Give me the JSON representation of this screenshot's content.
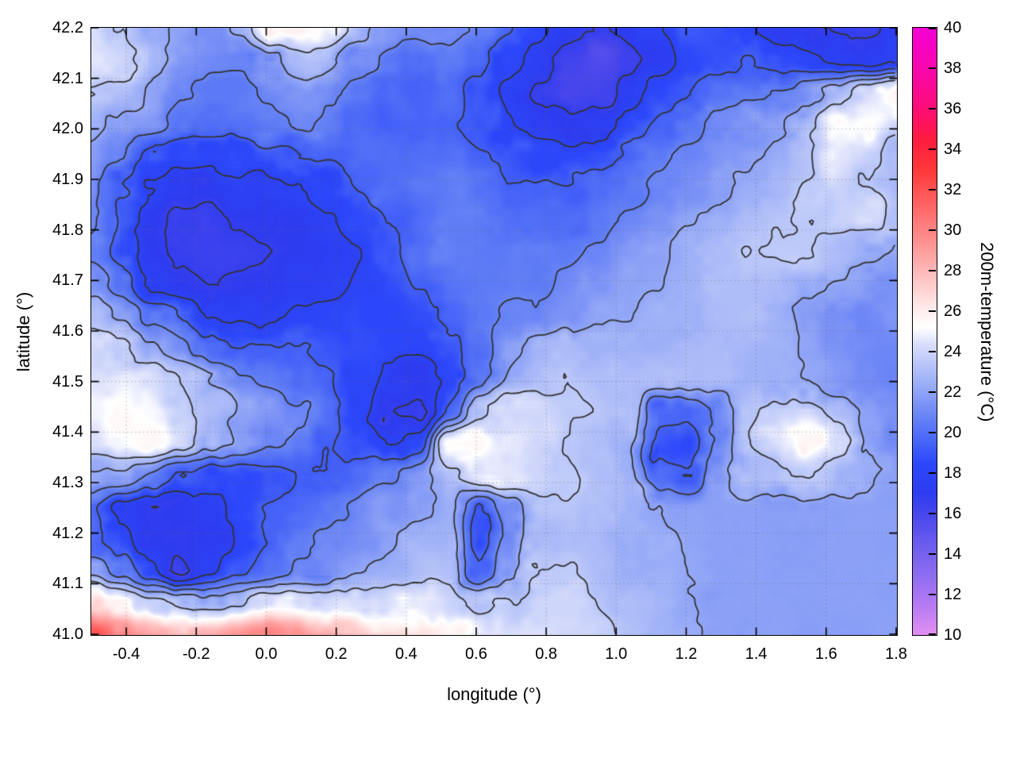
{
  "figure": {
    "xlabel": "longitude (°)",
    "ylabel": "latitude (°)",
    "cblabel": "200m-temperature (°C)",
    "background": "#ffffff",
    "text_color": "#000000"
  },
  "chart_data": {
    "type": "heatmap",
    "title": "",
    "xlabel": "longitude (°)",
    "ylabel": "latitude (°)",
    "x_range": [
      -0.5,
      1.8
    ],
    "y_range": [
      41.0,
      42.2
    ],
    "x_ticks": [
      "-0.4",
      "-0.2",
      "0.0",
      "0.2",
      "0.4",
      "0.6",
      "0.8",
      "1.0",
      "1.2",
      "1.4",
      "1.6",
      "1.8"
    ],
    "y_ticks": [
      "41.0",
      "41.1",
      "41.2",
      "41.3",
      "41.4",
      "41.5",
      "41.6",
      "41.7",
      "41.8",
      "41.9",
      "42.0",
      "42.1",
      "42.2"
    ],
    "grid_lines": {
      "style": "dotted",
      "color": "rgba(110,110,110,0.5)"
    },
    "contour_levels": [
      23.5,
      22.15,
      20.8,
      19.4,
      18.0,
      16.8
    ],
    "contour_color": "#333333",
    "colorbar": {
      "label": "200m-temperature (°C)",
      "range": [
        10,
        40
      ],
      "ticks": [
        "10",
        "12",
        "14",
        "16",
        "18",
        "20",
        "22",
        "24",
        "26",
        "28",
        "30",
        "32",
        "34",
        "36",
        "38",
        "40"
      ],
      "stops": [
        [
          10,
          "#e08ff0"
        ],
        [
          11.5,
          "#b57af2"
        ],
        [
          13,
          "#8c6cf0"
        ],
        [
          14.5,
          "#6b5cee"
        ],
        [
          16,
          "#4746ec"
        ],
        [
          17,
          "#2e3cf0"
        ],
        [
          18.5,
          "#2c47fa"
        ],
        [
          19.5,
          "#4663f8"
        ],
        [
          20.5,
          "#5f7cf6"
        ],
        [
          21.5,
          "#7e95f6"
        ],
        [
          22.5,
          "#9fb1f7"
        ],
        [
          23.5,
          "#bcc8f9"
        ],
        [
          24.4,
          "#dadffb"
        ],
        [
          25.2,
          "#ffffff"
        ],
        [
          26.2,
          "#ffe9e9"
        ],
        [
          27.5,
          "#ffc6c6"
        ],
        [
          29,
          "#ff9c9c"
        ],
        [
          31,
          "#ff6a6a"
        ],
        [
          33,
          "#ff3838"
        ],
        [
          34.5,
          "#ff1a40"
        ],
        [
          36,
          "#fd0d76"
        ],
        [
          38,
          "#f807ae"
        ],
        [
          40,
          "#f400d6"
        ]
      ]
    },
    "grid": {
      "nx": 28,
      "ny": 20,
      "order": "rows north (42.2) to south (41.0), columns west (-0.5) to east (1.8)",
      "units": "degC",
      "values": [
        [
          24.5,
          23.5,
          22.5,
          22.0,
          21.5,
          22.5,
          25.5,
          26.0,
          25.0,
          22.5,
          21.5,
          21.0,
          21.0,
          20.5,
          19.5,
          18.5,
          17.5,
          16.8,
          17.0,
          18.0,
          19.0,
          18.8,
          18.2,
          17.5,
          17.0,
          16.6,
          16.5,
          17.0
        ],
        [
          24.5,
          24.0,
          22.5,
          21.5,
          21.0,
          21.0,
          22.0,
          23.0,
          22.5,
          21.5,
          20.5,
          20.0,
          20.5,
          20.0,
          18.5,
          17.5,
          16.2,
          15.8,
          16.5,
          17.5,
          18.5,
          19.0,
          19.5,
          19.0,
          18.5,
          18.0,
          17.5,
          18.0
        ],
        [
          23.5,
          23.0,
          22.0,
          21.0,
          20.5,
          20.5,
          21.0,
          21.5,
          21.0,
          20.5,
          20.0,
          19.5,
          20.0,
          19.0,
          17.5,
          16.5,
          16.0,
          16.2,
          17.0,
          18.5,
          19.5,
          20.0,
          20.5,
          21.0,
          21.5,
          22.5,
          24.5,
          25.5
        ],
        [
          22.5,
          22.0,
          21.5,
          20.5,
          20.0,
          20.0,
          20.5,
          21.0,
          20.5,
          20.0,
          19.5,
          19.5,
          19.5,
          19.0,
          18.0,
          17.2,
          17.0,
          17.5,
          18.5,
          19.5,
          20.5,
          21.0,
          21.5,
          22.0,
          23.5,
          25.0,
          25.5,
          24.0
        ],
        [
          22.0,
          21.0,
          19.5,
          18.8,
          18.5,
          18.5,
          19.0,
          19.5,
          19.5,
          20.0,
          20.0,
          20.0,
          20.0,
          19.5,
          19.0,
          18.5,
          18.5,
          19.0,
          19.5,
          20.5,
          21.0,
          21.5,
          22.0,
          22.5,
          23.5,
          24.5,
          24.0,
          23.0
        ],
        [
          21.5,
          19.5,
          18.0,
          17.5,
          17.2,
          17.5,
          17.8,
          18.0,
          18.5,
          19.5,
          20.0,
          20.5,
          20.5,
          20.0,
          19.5,
          19.5,
          19.5,
          20.0,
          20.5,
          21.0,
          21.5,
          22.0,
          22.5,
          23.0,
          23.5,
          24.0,
          23.5,
          22.5
        ],
        [
          21.0,
          19.0,
          17.2,
          16.8,
          16.6,
          16.8,
          17.0,
          17.2,
          17.8,
          18.5,
          19.5,
          20.0,
          20.5,
          20.5,
          20.0,
          20.0,
          20.0,
          20.5,
          21.0,
          21.5,
          22.0,
          22.5,
          23.0,
          23.5,
          23.5,
          24.0,
          24.5,
          23.0
        ],
        [
          20.5,
          18.5,
          17.0,
          16.6,
          16.5,
          16.6,
          16.8,
          17.0,
          17.5,
          18.0,
          19.0,
          19.8,
          20.5,
          20.5,
          20.5,
          20.5,
          20.5,
          21.0,
          21.5,
          22.0,
          22.5,
          23.0,
          23.5,
          23.5,
          23.5,
          23.0,
          22.5,
          22.0
        ],
        [
          21.5,
          20.0,
          18.0,
          17.0,
          16.8,
          17.0,
          17.2,
          17.5,
          17.8,
          18.2,
          18.8,
          19.5,
          20.2,
          20.5,
          20.5,
          20.5,
          21.0,
          21.5,
          22.0,
          22.0,
          22.5,
          23.0,
          23.0,
          23.0,
          22.5,
          22.0,
          21.5,
          21.5
        ],
        [
          23.0,
          22.0,
          20.5,
          19.0,
          18.0,
          17.8,
          17.8,
          18.0,
          18.2,
          18.5,
          18.5,
          19.0,
          19.8,
          20.5,
          21.0,
          21.0,
          21.5,
          22.0,
          22.0,
          22.5,
          22.5,
          23.0,
          23.0,
          22.5,
          22.0,
          21.5,
          21.0,
          21.5
        ],
        [
          24.0,
          23.5,
          22.5,
          21.0,
          20.0,
          19.5,
          19.5,
          19.5,
          19.0,
          18.8,
          18.5,
          18.2,
          19.0,
          20.0,
          22.0,
          22.5,
          23.0,
          22.5,
          22.5,
          22.5,
          23.0,
          23.0,
          22.5,
          22.5,
          22.0,
          21.5,
          21.0,
          21.0
        ],
        [
          24.5,
          25.0,
          24.5,
          23.5,
          22.0,
          21.0,
          20.5,
          20.0,
          19.5,
          18.5,
          17.5,
          17.2,
          18.5,
          20.5,
          22.5,
          23.0,
          23.5,
          23.0,
          23.0,
          23.0,
          23.0,
          23.0,
          22.5,
          22.5,
          22.0,
          21.5,
          21.2,
          21.0
        ],
        [
          25.0,
          25.5,
          25.0,
          24.0,
          23.0,
          22.0,
          21.5,
          21.0,
          20.0,
          18.5,
          16.8,
          16.5,
          19.5,
          23.0,
          24.0,
          24.0,
          23.5,
          23.5,
          23.0,
          19.5,
          19.5,
          21.5,
          23.0,
          24.0,
          24.5,
          23.0,
          22.0,
          21.5
        ],
        [
          24.5,
          25.0,
          25.5,
          24.5,
          23.0,
          22.0,
          21.0,
          20.5,
          19.5,
          19.0,
          18.0,
          18.5,
          25.5,
          25.5,
          24.5,
          24.0,
          23.5,
          23.0,
          22.5,
          19.0,
          18.5,
          21.0,
          23.5,
          24.5,
          25.5,
          24.0,
          22.0,
          21.2
        ],
        [
          22.0,
          21.5,
          20.5,
          19.5,
          18.8,
          18.5,
          19.0,
          19.5,
          19.5,
          20.0,
          20.5,
          21.5,
          23.0,
          24.5,
          24.5,
          24.0,
          23.5,
          23.0,
          22.5,
          20.0,
          19.5,
          21.5,
          23.0,
          23.5,
          23.5,
          22.5,
          22.2,
          22.0
        ],
        [
          19.5,
          17.5,
          17.0,
          17.2,
          17.5,
          18.5,
          19.5,
          20.0,
          20.5,
          21.0,
          21.5,
          22.0,
          22.5,
          19.5,
          21.5,
          23.5,
          23.5,
          23.0,
          22.5,
          22.2,
          22.0,
          21.9,
          21.9,
          21.9,
          21.9,
          21.9,
          21.9,
          21.9
        ],
        [
          20.0,
          18.5,
          17.0,
          16.8,
          17.2,
          18.5,
          19.5,
          20.5,
          21.0,
          21.5,
          22.0,
          22.5,
          22.5,
          18.5,
          21.0,
          23.0,
          23.0,
          23.0,
          22.6,
          22.3,
          22.0,
          21.9,
          21.9,
          21.9,
          21.9,
          21.9,
          21.9,
          21.9
        ],
        [
          21.5,
          20.0,
          18.0,
          16.8,
          17.5,
          19.0,
          20.0,
          21.0,
          21.5,
          22.0,
          22.5,
          23.0,
          23.0,
          19.5,
          21.5,
          23.5,
          23.5,
          23.0,
          22.6,
          22.4,
          22.1,
          21.9,
          21.9,
          21.9,
          21.9,
          21.9,
          21.9,
          21.9
        ],
        [
          27.0,
          25.5,
          24.0,
          23.0,
          23.0,
          23.5,
          24.0,
          24.0,
          24.5,
          24.5,
          24.5,
          24.5,
          24.0,
          23.0,
          23.5,
          24.0,
          24.0,
          23.5,
          23.0,
          22.6,
          22.3,
          22.0,
          21.9,
          21.9,
          21.9,
          21.9,
          21.9,
          21.9
        ],
        [
          32.0,
          30.5,
          28.5,
          28.0,
          28.5,
          29.5,
          29.5,
          29.0,
          28.5,
          27.5,
          27.0,
          26.5,
          25.5,
          24.5,
          24.5,
          24.5,
          24.2,
          23.8,
          23.2,
          22.7,
          22.3,
          22.0,
          21.9,
          21.9,
          21.9,
          21.9,
          21.9,
          21.9
        ]
      ]
    }
  }
}
